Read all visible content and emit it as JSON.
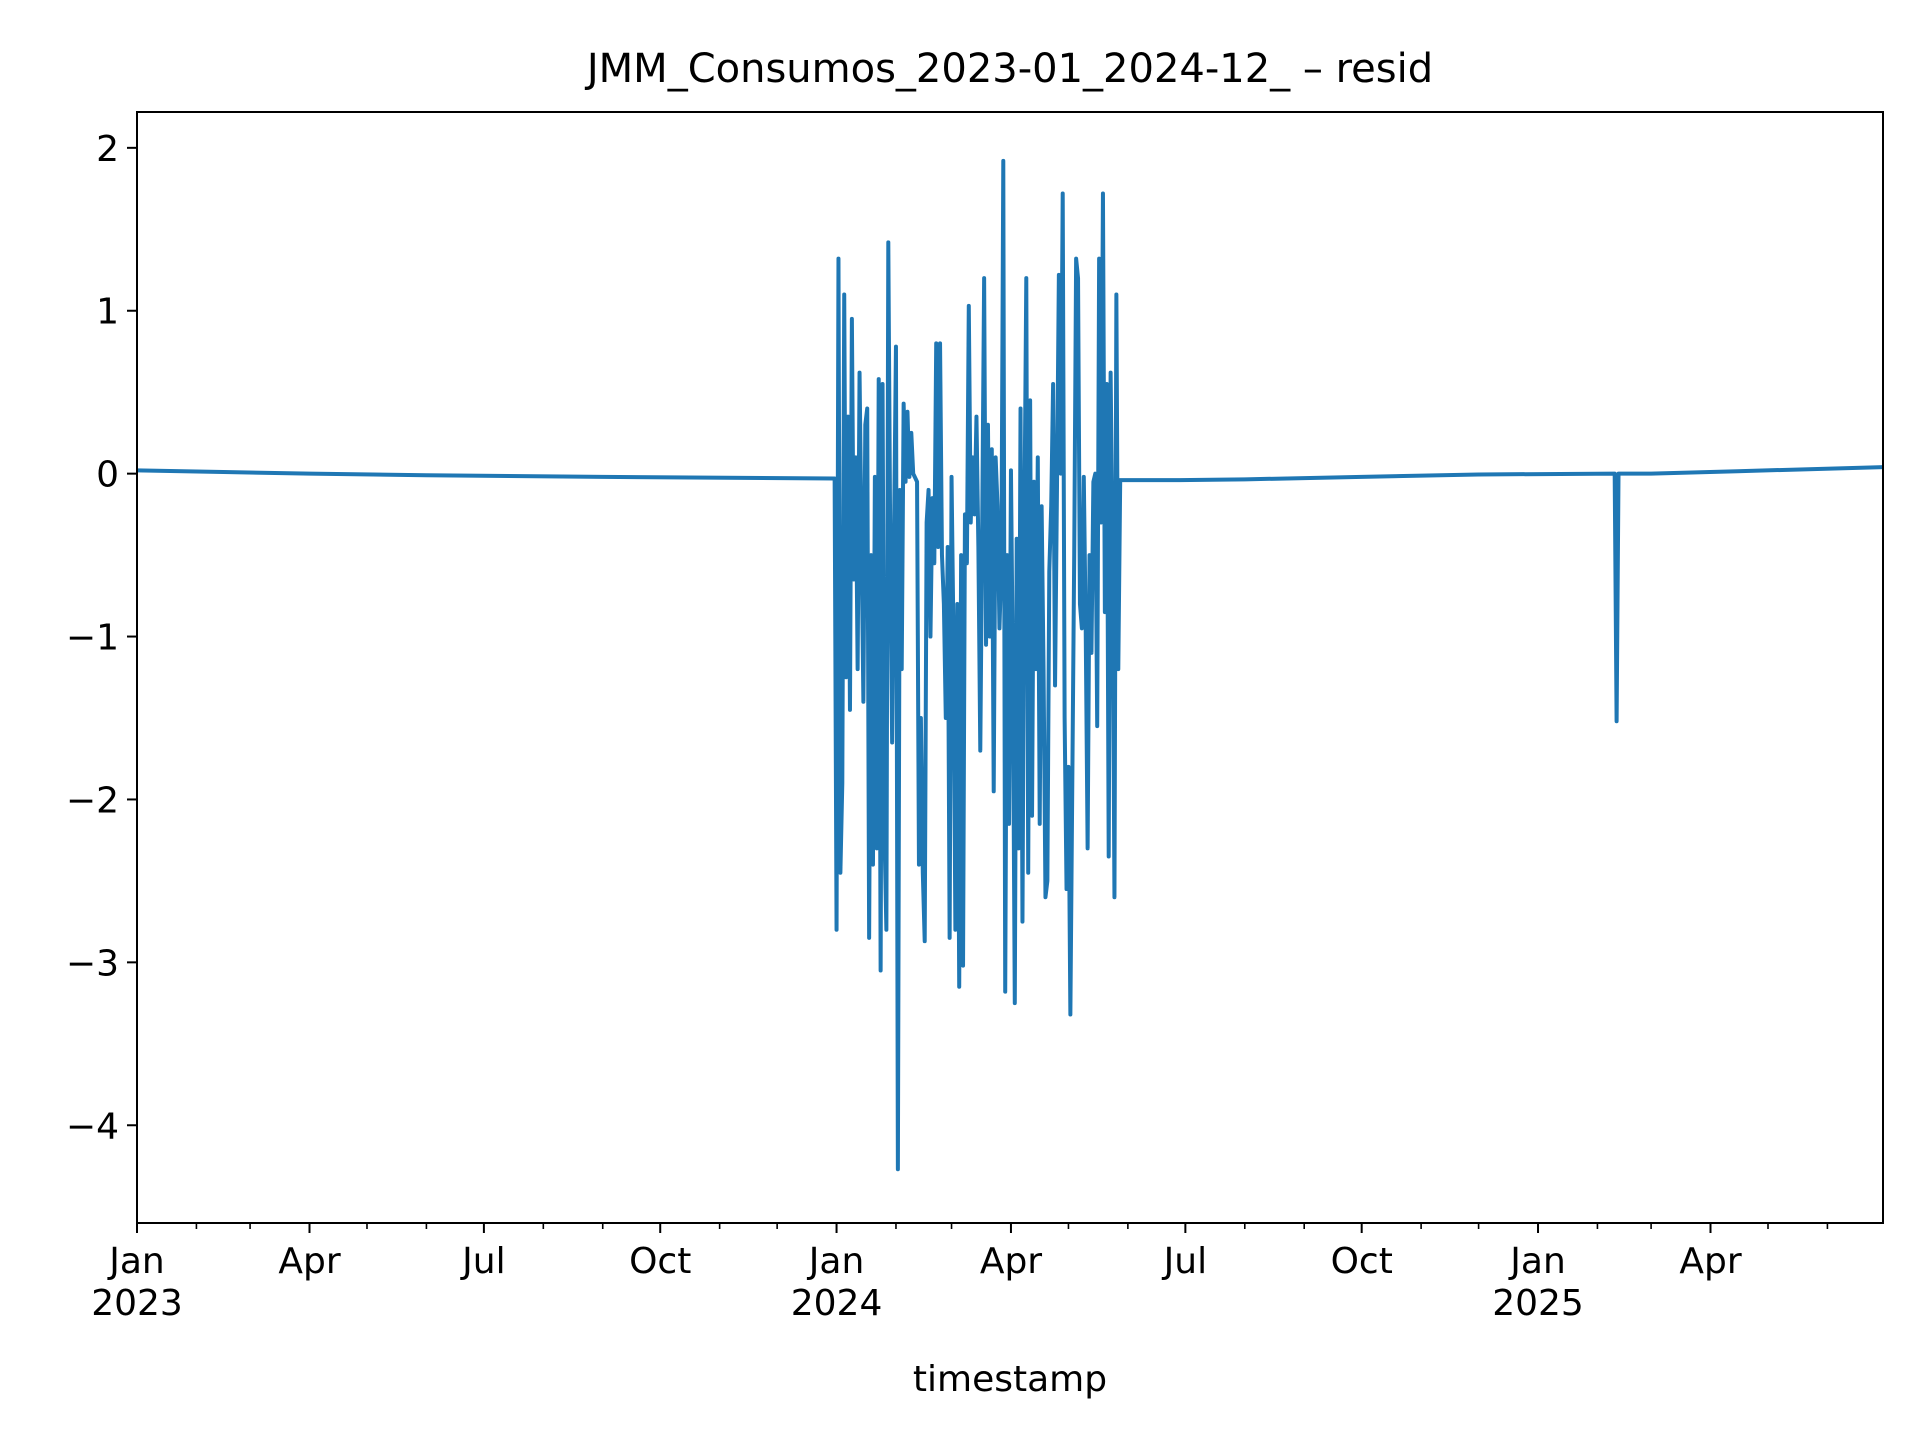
{
  "chart_data": {
    "type": "line",
    "title": "JMM_Consumos_2023-01_2024-12_ – resid",
    "xlabel": "timestamp",
    "ylabel": "",
    "x_range": [
      "2023-01-01",
      "2025-06-30"
    ],
    "ylim": [
      -4.6,
      2.22
    ],
    "y_ticks": [
      2,
      1,
      0,
      -1,
      -2,
      -3,
      -4
    ],
    "y_tick_labels": [
      "2",
      "1",
      "0",
      "−1",
      "−2",
      "−3",
      "−4"
    ],
    "x_major_ticks": [
      {
        "date": "2023-01-01",
        "line1": "Jan",
        "line2": "2023"
      },
      {
        "date": "2023-04-01",
        "line1": "Apr",
        "line2": ""
      },
      {
        "date": "2023-07-01",
        "line1": "Jul",
        "line2": ""
      },
      {
        "date": "2023-10-01",
        "line1": "Oct",
        "line2": ""
      },
      {
        "date": "2024-01-01",
        "line1": "Jan",
        "line2": "2024"
      },
      {
        "date": "2024-04-01",
        "line1": "Apr",
        "line2": ""
      },
      {
        "date": "2024-07-01",
        "line1": "Jul",
        "line2": ""
      },
      {
        "date": "2024-10-01",
        "line1": "Oct",
        "line2": ""
      },
      {
        "date": "2025-01-01",
        "line1": "Jan",
        "line2": "2025"
      },
      {
        "date": "2025-04-01",
        "line1": "Apr",
        "line2": ""
      }
    ],
    "x_minor_ticks": [
      "2023-02-01",
      "2023-03-01",
      "2023-05-01",
      "2023-06-01",
      "2023-08-01",
      "2023-09-01",
      "2023-11-01",
      "2023-12-01",
      "2024-02-01",
      "2024-03-01",
      "2024-05-01",
      "2024-06-01",
      "2024-08-01",
      "2024-09-01",
      "2024-11-01",
      "2024-12-01",
      "2025-02-01",
      "2025-03-01",
      "2025-05-01",
      "2025-06-01",
      "2025-07-01"
    ],
    "series": [
      {
        "name": "resid",
        "color": "#1f77b4",
        "points": [
          [
            "2023-01-01",
            0.02
          ],
          [
            "2023-02-15",
            0.01
          ],
          [
            "2023-04-01",
            0.0
          ],
          [
            "2023-06-01",
            -0.01
          ],
          [
            "2023-09-01",
            -0.02
          ],
          [
            "2023-12-31",
            -0.03
          ],
          [
            "2024-01-01",
            -2.8
          ],
          [
            "2024-01-02",
            1.32
          ],
          [
            "2024-01-03",
            -2.45
          ],
          [
            "2024-01-04",
            -1.9
          ],
          [
            "2024-01-05",
            1.1
          ],
          [
            "2024-01-06",
            -1.25
          ],
          [
            "2024-01-07",
            0.35
          ],
          [
            "2024-01-08",
            -1.45
          ],
          [
            "2024-01-09",
            0.95
          ],
          [
            "2024-01-10",
            -0.65
          ],
          [
            "2024-01-11",
            0.1
          ],
          [
            "2024-01-12",
            -1.2
          ],
          [
            "2024-01-13",
            0.62
          ],
          [
            "2024-01-14",
            -0.4
          ],
          [
            "2024-01-15",
            -1.4
          ],
          [
            "2024-01-16",
            0.3
          ],
          [
            "2024-01-17",
            0.4
          ],
          [
            "2024-01-18",
            -2.85
          ],
          [
            "2024-01-19",
            -0.5
          ],
          [
            "2024-01-20",
            -2.4
          ],
          [
            "2024-01-21",
            -0.02
          ],
          [
            "2024-01-22",
            -2.3
          ],
          [
            "2024-01-23",
            0.58
          ],
          [
            "2024-01-24",
            -3.05
          ],
          [
            "2024-01-25",
            0.55
          ],
          [
            "2024-01-26",
            -2.2
          ],
          [
            "2024-01-27",
            -2.8
          ],
          [
            "2024-01-28",
            1.42
          ],
          [
            "2024-01-29",
            -0.4
          ],
          [
            "2024-01-30",
            -1.65
          ],
          [
            "2024-01-31",
            -0.35
          ],
          [
            "2024-02-01",
            0.78
          ],
          [
            "2024-02-02",
            -4.27
          ],
          [
            "2024-02-03",
            -0.1
          ],
          [
            "2024-02-04",
            -1.2
          ],
          [
            "2024-02-05",
            0.43
          ],
          [
            "2024-02-06",
            -0.05
          ],
          [
            "2024-02-07",
            0.38
          ],
          [
            "2024-02-08",
            -0.02
          ],
          [
            "2024-02-09",
            0.25
          ],
          [
            "2024-02-10",
            0.0
          ],
          [
            "2024-02-12",
            -0.05
          ],
          [
            "2024-02-13",
            -2.4
          ],
          [
            "2024-02-14",
            -1.5
          ],
          [
            "2024-02-15",
            -2.45
          ],
          [
            "2024-02-16",
            -2.87
          ],
          [
            "2024-02-17",
            -0.3
          ],
          [
            "2024-02-18",
            -0.1
          ],
          [
            "2024-02-19",
            -1.0
          ],
          [
            "2024-02-20",
            -0.15
          ],
          [
            "2024-02-21",
            -0.55
          ],
          [
            "2024-02-22",
            0.8
          ],
          [
            "2024-02-23",
            -0.45
          ],
          [
            "2024-02-24",
            0.8
          ],
          [
            "2024-02-25",
            -0.5
          ],
          [
            "2024-02-26",
            -0.8
          ],
          [
            "2024-02-27",
            -1.5
          ],
          [
            "2024-02-28",
            -0.45
          ],
          [
            "2024-02-29",
            -2.85
          ],
          [
            "2024-03-01",
            -0.02
          ],
          [
            "2024-03-02",
            -1.0
          ],
          [
            "2024-03-03",
            -2.8
          ],
          [
            "2024-03-04",
            -0.8
          ],
          [
            "2024-03-05",
            -3.15
          ],
          [
            "2024-03-06",
            -0.5
          ],
          [
            "2024-03-07",
            -3.02
          ],
          [
            "2024-03-08",
            -0.25
          ],
          [
            "2024-03-09",
            -0.55
          ],
          [
            "2024-03-10",
            1.03
          ],
          [
            "2024-03-11",
            -0.3
          ],
          [
            "2024-03-12",
            0.1
          ],
          [
            "2024-03-13",
            -0.25
          ],
          [
            "2024-03-14",
            0.35
          ],
          [
            "2024-03-15",
            -0.45
          ],
          [
            "2024-03-16",
            -1.7
          ],
          [
            "2024-03-17",
            -0.3
          ],
          [
            "2024-03-18",
            1.2
          ],
          [
            "2024-03-19",
            -1.05
          ],
          [
            "2024-03-20",
            0.3
          ],
          [
            "2024-03-21",
            -1.0
          ],
          [
            "2024-03-22",
            0.15
          ],
          [
            "2024-03-23",
            -1.95
          ],
          [
            "2024-03-24",
            0.1
          ],
          [
            "2024-03-25",
            -0.2
          ],
          [
            "2024-03-26",
            -0.95
          ],
          [
            "2024-03-27",
            -0.55
          ],
          [
            "2024-03-28",
            1.92
          ],
          [
            "2024-03-29",
            -3.18
          ],
          [
            "2024-03-30",
            -0.5
          ],
          [
            "2024-03-31",
            -2.15
          ],
          [
            "2024-04-01",
            0.02
          ],
          [
            "2024-04-02",
            -1.25
          ],
          [
            "2024-04-03",
            -3.25
          ],
          [
            "2024-04-04",
            -0.4
          ],
          [
            "2024-04-05",
            -2.3
          ],
          [
            "2024-04-06",
            0.4
          ],
          [
            "2024-04-07",
            -2.75
          ],
          [
            "2024-04-08",
            -0.3
          ],
          [
            "2024-04-09",
            1.2
          ],
          [
            "2024-04-10",
            -2.45
          ],
          [
            "2024-04-11",
            0.45
          ],
          [
            "2024-04-12",
            -2.1
          ],
          [
            "2024-04-13",
            -0.05
          ],
          [
            "2024-04-14",
            -1.2
          ],
          [
            "2024-04-15",
            0.1
          ],
          [
            "2024-04-16",
            -2.15
          ],
          [
            "2024-04-17",
            -0.2
          ],
          [
            "2024-04-18",
            -1.2
          ],
          [
            "2024-04-19",
            -2.6
          ],
          [
            "2024-04-20",
            -2.5
          ],
          [
            "2024-04-21",
            -0.6
          ],
          [
            "2024-04-22",
            -0.2
          ],
          [
            "2024-04-23",
            0.55
          ],
          [
            "2024-04-24",
            -1.3
          ],
          [
            "2024-04-25",
            -0.1
          ],
          [
            "2024-04-26",
            1.22
          ],
          [
            "2024-04-27",
            0.0
          ],
          [
            "2024-04-28",
            1.72
          ],
          [
            "2024-04-29",
            -1.5
          ],
          [
            "2024-04-30",
            -2.55
          ],
          [
            "2024-05-01",
            -1.8
          ],
          [
            "2024-05-02",
            -3.32
          ],
          [
            "2024-05-03",
            -1.9
          ],
          [
            "2024-05-04",
            -0.5
          ],
          [
            "2024-05-05",
            1.32
          ],
          [
            "2024-05-06",
            1.2
          ],
          [
            "2024-05-07",
            -0.8
          ],
          [
            "2024-05-08",
            -0.95
          ],
          [
            "2024-05-09",
            -0.02
          ],
          [
            "2024-05-10",
            -0.95
          ],
          [
            "2024-05-11",
            -2.3
          ],
          [
            "2024-05-12",
            -0.5
          ],
          [
            "2024-05-13",
            -1.1
          ],
          [
            "2024-05-14",
            -0.05
          ],
          [
            "2024-05-15",
            0.0
          ],
          [
            "2024-05-16",
            -1.55
          ],
          [
            "2024-05-17",
            1.32
          ],
          [
            "2024-05-18",
            -0.3
          ],
          [
            "2024-05-19",
            1.72
          ],
          [
            "2024-05-20",
            -0.85
          ],
          [
            "2024-05-21",
            0.55
          ],
          [
            "2024-05-22",
            -2.35
          ],
          [
            "2024-05-23",
            0.62
          ],
          [
            "2024-05-24",
            -0.5
          ],
          [
            "2024-05-25",
            -2.6
          ],
          [
            "2024-05-26",
            1.1
          ],
          [
            "2024-05-27",
            -1.2
          ],
          [
            "2024-05-28",
            -0.04
          ],
          [
            "2024-06-28",
            -0.04
          ],
          [
            "2024-08-01",
            -0.035
          ],
          [
            "2024-10-01",
            -0.02
          ],
          [
            "2024-12-01",
            -0.005
          ],
          [
            "2025-02-10",
            0.0
          ],
          [
            "2025-02-11",
            -1.52
          ],
          [
            "2025-02-12",
            0.0
          ],
          [
            "2025-03-01",
            0.0
          ],
          [
            "2025-04-15",
            0.015
          ],
          [
            "2025-06-30",
            0.04
          ]
        ]
      }
    ]
  }
}
